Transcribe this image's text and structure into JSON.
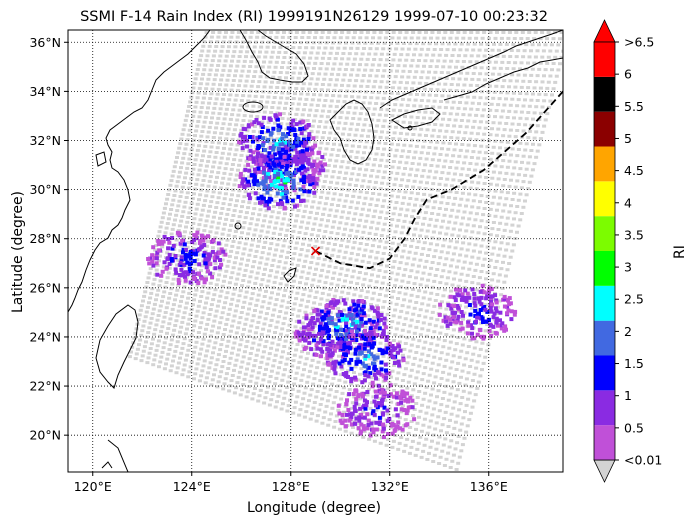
{
  "title": "SSMI F-14 Rain Index (RI) 1999191N26129 1999-07-10 00:23:32",
  "xlabel": "Longitude (degree)",
  "ylabel": "Latitude (degree)",
  "xticks": [
    "120°E",
    "124°E",
    "128°E",
    "132°E",
    "136°E"
  ],
  "yticks": [
    "20°N",
    "22°N",
    "24°N",
    "26°N",
    "28°N",
    "30°N",
    "32°N",
    "34°N",
    "36°N"
  ],
  "colorbar": {
    "label": "RI",
    "ticks": [
      "<0.01",
      "0.5",
      "1",
      "1.5",
      "2",
      "2.5",
      "3",
      "3.5",
      "4",
      "4.5",
      "5",
      "5.5",
      "6",
      ">6.5"
    ],
    "colors": [
      "#d3d3d3",
      "#c050d8",
      "#8a2be2",
      "#0000ff",
      "#4169e1",
      "#00ffff",
      "#00ff00",
      "#7cfc00",
      "#ffff00",
      "#ffa500",
      "#8b0000",
      "#000000",
      "#ff0000"
    ]
  },
  "chart_data": {
    "type": "heatmap",
    "title": "SSMI F-14 Rain Index (RI) 1999191N26129 1999-07-10 00:23:32",
    "xlabel": "Longitude (degree)",
    "ylabel": "Latitude (degree)",
    "xlim": [
      119,
      139
    ],
    "ylim": [
      18.5,
      36.5
    ],
    "grid": true,
    "storm_center": {
      "lon": 129.0,
      "lat": 27.5
    },
    "track_dashed": [
      [
        139,
        34
      ],
      [
        137.5,
        32.3
      ],
      [
        135.8,
        30.8
      ],
      [
        134.5,
        30.0
      ],
      [
        133.5,
        29.6
      ],
      [
        133.0,
        28.8
      ],
      [
        132.6,
        28.0
      ],
      [
        132.0,
        27.2
      ],
      [
        131.2,
        26.8
      ],
      [
        130.0,
        27.0
      ],
      [
        129.0,
        27.5
      ]
    ],
    "rain_regions": [
      {
        "lon": 127.8,
        "lat": 31.0,
        "ri": 1.5
      },
      {
        "lon": 127.5,
        "lat": 32.0,
        "ri": 2.2
      },
      {
        "lon": 127.5,
        "lat": 30.3,
        "ri": 2.7
      },
      {
        "lon": 123.8,
        "lat": 27.2,
        "ri": 1.3
      },
      {
        "lon": 129.8,
        "lat": 24.2,
        "ri": 1.5
      },
      {
        "lon": 130.3,
        "lat": 24.5,
        "ri": 2.5
      },
      {
        "lon": 131.0,
        "lat": 23.2,
        "ri": 2.0
      },
      {
        "lon": 135.5,
        "lat": 25.0,
        "ri": 1.2
      },
      {
        "lon": 131.5,
        "lat": 21.0,
        "ri": 1.0
      }
    ]
  }
}
